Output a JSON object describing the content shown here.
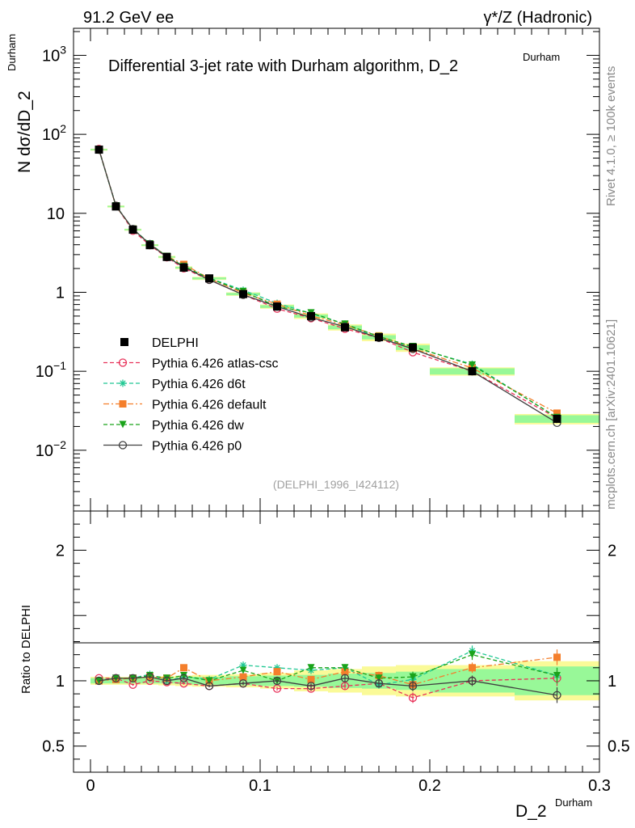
{
  "header": {
    "left": "91.2 GeV ee",
    "right": "γ*/Z (Hadronic)"
  },
  "side_labels": {
    "rivet": "Rivet 4.1.0, ≥ 100k events",
    "mcplots": "mcplots.cern.ch [arXiv:2401.10621]"
  },
  "colors": {
    "atlas_csc": "#e8325a",
    "d6t": "#20c893",
    "default": "#f47f2c",
    "dw": "#1aa31a",
    "p0": "#404040",
    "data": "#000000",
    "band_inner": "#98f898",
    "band_outer": "#fafa98"
  },
  "chart_data": {
    "type": "line",
    "title": "Differential 3-jet rate with Durham algorithm, D_2",
    "title_sup": "Durham",
    "analysis_label": "(DELPHI_1996_I424112)",
    "ylabel": "N  dσ/dD_2",
    "ylabel_sup": "Durham",
    "xlabel": "D_2",
    "xlabel_sup": "Durham",
    "ratio_ylabel": "Ratio to DELPHI",
    "xlim": [
      -0.01,
      0.3
    ],
    "ylim": [
      0.0017,
      2200
    ],
    "yscale": "log",
    "ratio_ylim": [
      0.3,
      2.3
    ],
    "x_ticks": [
      0,
      0.1,
      0.2,
      0.3
    ],
    "x_tick_labels": [
      "0",
      "0.1",
      "0.2",
      "0.3"
    ],
    "y_ticks": [
      {
        "value": 1000,
        "base": "10",
        "exp": "3"
      },
      {
        "value": 100,
        "base": "10",
        "exp": "2"
      },
      {
        "value": 10,
        "base": "10",
        "exp": ""
      },
      {
        "value": 1,
        "base": "1",
        "exp": ""
      },
      {
        "value": 0.1,
        "base": "10",
        "exp": "−1"
      },
      {
        "value": 0.01,
        "base": "10",
        "exp": "−2"
      }
    ],
    "ratio_ticks": [
      {
        "value": 2,
        "label": "2"
      },
      {
        "value": 1,
        "label": "1"
      },
      {
        "value": 0.5,
        "label": "0.5"
      }
    ],
    "x": [
      0.005,
      0.015,
      0.025,
      0.035,
      0.045,
      0.055,
      0.07,
      0.09,
      0.11,
      0.13,
      0.15,
      0.17,
      0.19,
      0.225,
      0.275
    ],
    "x_edges": [
      0,
      0.01,
      0.02,
      0.03,
      0.04,
      0.05,
      0.06,
      0.08,
      0.1,
      0.12,
      0.14,
      0.16,
      0.18,
      0.2,
      0.25,
      0.3
    ],
    "data": {
      "name": "DELPHI",
      "values": [
        64,
        12.2,
        6.2,
        3.95,
        2.8,
        2.05,
        1.5,
        0.95,
        0.66,
        0.5,
        0.36,
        0.27,
        0.2,
        0.1,
        0.025
      ],
      "band_inner": [
        0.02,
        0.02,
        0.02,
        0.02,
        0.02,
        0.025,
        0.03,
        0.035,
        0.04,
        0.045,
        0.055,
        0.06,
        0.07,
        0.09,
        0.11
      ],
      "band_outer": [
        0.03,
        0.03,
        0.03,
        0.03,
        0.035,
        0.04,
        0.045,
        0.05,
        0.06,
        0.08,
        0.09,
        0.11,
        0.12,
        0.12,
        0.15
      ]
    },
    "series": [
      {
        "name": "Pythia 6.426 atlas-csc",
        "key": "atlas_csc",
        "marker": "circle-open",
        "dash": "5,3",
        "ratio": [
          1.02,
          1.02,
          0.97,
          1.0,
          0.99,
          0.98,
          0.96,
          0.98,
          0.94,
          0.94,
          0.96,
          0.98,
          0.87,
          1.0,
          1.02
        ],
        "ratio_err": [
          0.005,
          0.005,
          0.008,
          0.01,
          0.01,
          0.01,
          0.01,
          0.015,
          0.015,
          0.02,
          0.025,
          0.03,
          0.04,
          0.04,
          0.06
        ]
      },
      {
        "name": "Pythia 6.426 d6t",
        "key": "d6t",
        "marker": "star",
        "dash": "5,3",
        "ratio": [
          1.0,
          1.02,
          1.02,
          1.05,
          1.0,
          1.03,
          1.01,
          1.12,
          1.1,
          1.08,
          1.1,
          0.97,
          1.01,
          1.23,
          1.04
        ],
        "ratio_err": [
          0.005,
          0.005,
          0.008,
          0.01,
          0.01,
          0.01,
          0.01,
          0.015,
          0.015,
          0.02,
          0.025,
          0.03,
          0.04,
          0.04,
          0.06
        ]
      },
      {
        "name": "Pythia 6.426 default",
        "key": "default",
        "marker": "square",
        "dash": "7,3,2,3",
        "ratio": [
          1.0,
          1.01,
          1.02,
          1.03,
          1.02,
          1.1,
          1.0,
          1.03,
          1.07,
          1.01,
          1.07,
          1.04,
          0.97,
          1.1,
          1.18
        ],
        "ratio_err": [
          0.005,
          0.005,
          0.008,
          0.01,
          0.01,
          0.01,
          0.01,
          0.015,
          0.015,
          0.02,
          0.025,
          0.03,
          0.04,
          0.04,
          0.06
        ]
      },
      {
        "name": "Pythia 6.426 dw",
        "key": "dw",
        "marker": "triangle-down",
        "dash": "5,3",
        "ratio": [
          1.0,
          1.02,
          1.02,
          1.04,
          1.02,
          1.04,
          1.0,
          1.08,
          1.0,
          1.1,
          1.1,
          1.02,
          1.03,
          1.2,
          1.04
        ],
        "ratio_err": [
          0.005,
          0.005,
          0.008,
          0.01,
          0.01,
          0.01,
          0.01,
          0.015,
          0.015,
          0.02,
          0.025,
          0.03,
          0.04,
          0.04,
          0.06
        ]
      },
      {
        "name": "Pythia 6.426 p0",
        "key": "p0",
        "marker": "circle-open",
        "dash": "",
        "ratio": [
          1.0,
          1.02,
          1.02,
          1.03,
          1.0,
          1.02,
          0.96,
          0.98,
          1.0,
          0.96,
          1.02,
          0.98,
          0.96,
          1.0,
          0.89
        ],
        "ratio_err": [
          0.005,
          0.005,
          0.008,
          0.01,
          0.01,
          0.01,
          0.01,
          0.015,
          0.015,
          0.02,
          0.025,
          0.03,
          0.04,
          0.04,
          0.06
        ]
      }
    ],
    "legend_position": "middle-left"
  }
}
